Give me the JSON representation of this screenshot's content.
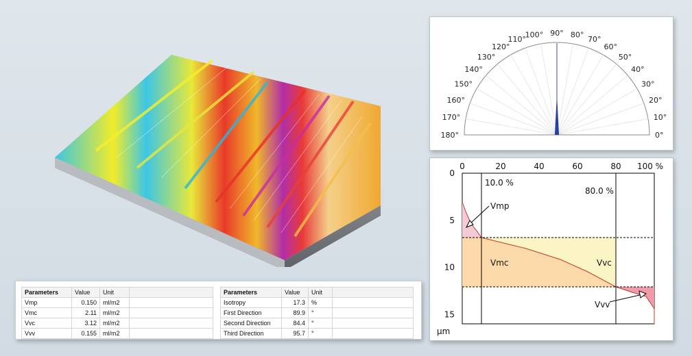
{
  "polar": {
    "angle_labels": [
      "0°",
      "10°",
      "20°",
      "30°",
      "40°",
      "50°",
      "60°",
      "70°",
      "80°",
      "90°",
      "100°",
      "110°",
      "120°",
      "130°",
      "140°",
      "150°",
      "160°",
      "170°",
      "180°"
    ]
  },
  "curve": {
    "x_ticks": [
      "0",
      "20",
      "40",
      "60",
      "80",
      "100 %"
    ],
    "y_ticks": [
      "0",
      "5",
      "10",
      "15"
    ],
    "y_unit": "µm",
    "mr1_label": "10.0 %",
    "mr2_label": "80.0 %",
    "regions": {
      "vmp": "Vmp",
      "vmc": "Vmc",
      "vvc": "Vvc",
      "vvv": "Vvv"
    },
    "colors": {
      "vmp": "#f6c9d7",
      "vmc": "#fcd9a8",
      "vvc": "#fbf5c6",
      "vvv": "#f19aa9"
    }
  },
  "table1": {
    "headers": [
      "Parameters",
      "Value",
      "Unit"
    ],
    "rows": [
      {
        "param": "Vmp",
        "value": "0.150",
        "unit": "ml/m2"
      },
      {
        "param": "Vmc",
        "value": "2.11",
        "unit": "ml/m2"
      },
      {
        "param": "Vvc",
        "value": "3.12",
        "unit": "ml/m2"
      },
      {
        "param": "Vvv",
        "value": "0.155",
        "unit": "ml/m2"
      }
    ]
  },
  "table2": {
    "headers": [
      "Parameters",
      "Value",
      "Unit"
    ],
    "rows": [
      {
        "param": "Isotropy",
        "value": "17.3",
        "unit": "%"
      },
      {
        "param": "First Direction",
        "value": "89.9",
        "unit": "°"
      },
      {
        "param": "Second Direction",
        "value": "84.4",
        "unit": "°"
      },
      {
        "param": "Third Direction",
        "value": "95.7",
        "unit": "°"
      }
    ]
  }
}
